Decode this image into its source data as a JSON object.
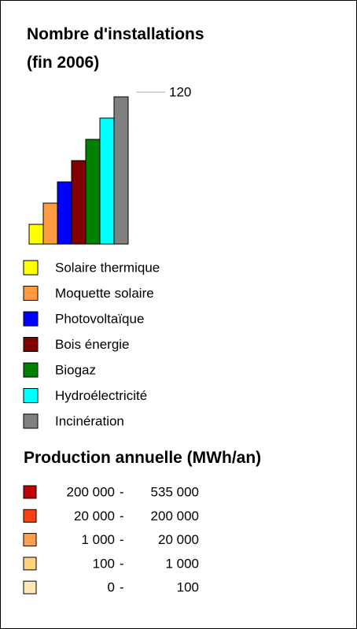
{
  "legend": {
    "title_lines": [
      "Nombre d'installations",
      "(fin 2006)"
    ],
    "scale_label": "120",
    "categories": [
      {
        "label": "Solaire thermique",
        "color": "#ffff00"
      },
      {
        "label": "Moquette solaire",
        "color": "#ff9a40"
      },
      {
        "label": "Photovoltaïque",
        "color": "#0000ff"
      },
      {
        "label": "Bois énergie",
        "color": "#800000"
      },
      {
        "label": "Biogaz",
        "color": "#008000"
      },
      {
        "label": "Hydroélectricité",
        "color": "#00ffff"
      },
      {
        "label": "Incinération",
        "color": "#808080"
      }
    ],
    "production_title": "Production annuelle (MWh/an)",
    "classes": [
      {
        "min": "200 000",
        "max": "535 000",
        "color": "#c00000"
      },
      {
        "min": "20 000",
        "max": "200 000",
        "color": "#ff4010"
      },
      {
        "min": "1 000",
        "max": "20 000",
        "color": "#ffa050"
      },
      {
        "min": "100",
        "max": "1 000",
        "color": "#ffd280"
      },
      {
        "min": "0",
        "max": "100",
        "color": "#ffe8b8"
      }
    ]
  }
}
